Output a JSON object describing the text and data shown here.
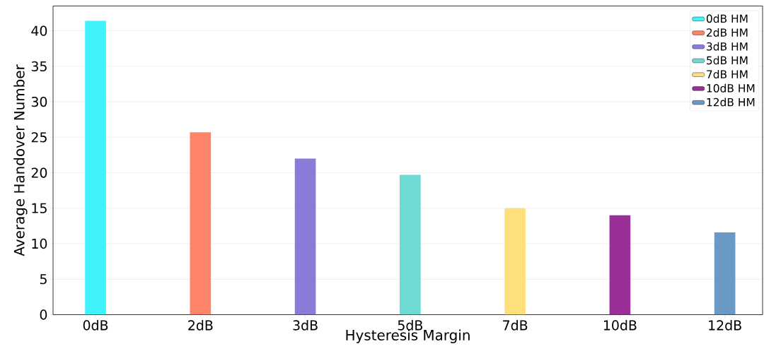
{
  "chart_data": {
    "type": "bar",
    "xlabel": "Hysteresis Margin",
    "ylabel": "Average Handover Number",
    "categories": [
      "0dB",
      "2dB",
      "3dB",
      "5dB",
      "7dB",
      "10dB",
      "12dB"
    ],
    "series": [
      {
        "name": "0dB HM",
        "color": "#40f2fc",
        "values": [
          41.4,
          null,
          null,
          null,
          null,
          null,
          null
        ]
      },
      {
        "name": "2dB HM",
        "color": "#fd8469",
        "values": [
          null,
          25.7,
          null,
          null,
          null,
          null,
          null
        ]
      },
      {
        "name": "3dB HM",
        "color": "#8a7bd8",
        "values": [
          null,
          null,
          22.0,
          null,
          null,
          null,
          null
        ]
      },
      {
        "name": "5dB HM",
        "color": "#6fd9d4",
        "values": [
          null,
          null,
          null,
          19.7,
          null,
          null,
          null
        ]
      },
      {
        "name": "7dB HM",
        "color": "#fde07c",
        "values": [
          null,
          null,
          null,
          null,
          15.0,
          null,
          null
        ]
      },
      {
        "name": "10dB HM",
        "color": "#9a2f97",
        "values": [
          null,
          null,
          null,
          null,
          null,
          14.0,
          null
        ]
      },
      {
        "name": "12dB HM",
        "color": "#6a99c6",
        "values": [
          null,
          null,
          null,
          null,
          null,
          null,
          11.6
        ]
      }
    ],
    "ylim": [
      0,
      43.5
    ],
    "yticks": [
      0,
      5,
      10,
      15,
      20,
      25,
      30,
      35,
      40
    ],
    "grid": "y",
    "legend": "top right"
  }
}
